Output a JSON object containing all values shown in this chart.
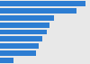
{
  "values": [
    95,
    85,
    60,
    55,
    52,
    47,
    43,
    40,
    15
  ],
  "bar_color": "#2d7dd2",
  "background_color": "#e8e8e8",
  "plot_bg_color": "#e8e8e8",
  "xlim": [
    0,
    100
  ],
  "bar_height": 0.75,
  "figsize": [
    1.0,
    0.71
  ],
  "dpi": 100
}
